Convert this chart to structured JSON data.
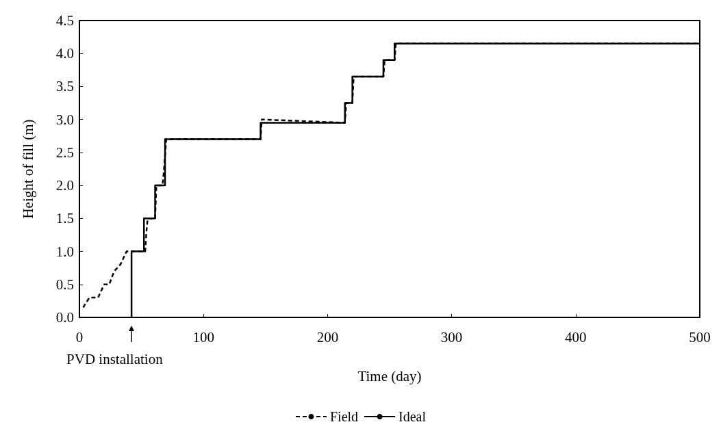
{
  "chart_data": {
    "type": "line",
    "xlabel": "Time (day)",
    "ylabel": "Height of fill (m)",
    "xlim": [
      0,
      500
    ],
    "xticks": [
      0,
      100,
      200,
      300,
      400,
      500
    ],
    "ylim": [
      0,
      4.5
    ],
    "yticks": [
      {
        "value": 0,
        "label": "0.0"
      },
      {
        "value": 0.5,
        "label": "0.5"
      },
      {
        "value": 1,
        "label": "1.0"
      },
      {
        "value": 1.5,
        "label": "1.5"
      },
      {
        "value": 2,
        "label": "2.0"
      },
      {
        "value": 2.5,
        "label": "2.5"
      },
      {
        "value": 3,
        "label": "3.0"
      },
      {
        "value": 3.5,
        "label": "3.5"
      },
      {
        "value": 4,
        "label": "4.0"
      },
      {
        "value": 4.5,
        "label": "4.5"
      }
    ],
    "grid": false,
    "legend": "bottom",
    "marker": "none",
    "series": [
      {
        "name": "Field",
        "line_style": "dashed",
        "color": "#000000",
        "x": [
          3,
          8,
          15,
          20,
          24,
          28,
          33,
          38,
          42,
          53,
          54,
          55,
          61,
          62,
          67,
          68,
          70,
          146,
          147,
          214,
          215,
          220,
          221,
          245,
          246,
          254,
          255,
          500
        ],
        "values": [
          0.15,
          0.3,
          0.3,
          0.5,
          0.5,
          0.7,
          0.8,
          1.0,
          1.0,
          1.0,
          1.3,
          1.5,
          1.5,
          2.0,
          2.0,
          2.2,
          2.7,
          2.7,
          3.0,
          2.95,
          3.25,
          3.25,
          3.65,
          3.65,
          3.9,
          3.9,
          4.15,
          4.15
        ]
      },
      {
        "name": "Ideal",
        "type": "step",
        "line_style": "solid",
        "color": "#000000",
        "x": [
          42,
          42,
          52,
          61,
          69,
          146,
          214,
          220,
          245,
          254,
          500
        ],
        "values": [
          0,
          1.0,
          1.5,
          2.0,
          2.7,
          2.95,
          3.25,
          3.65,
          3.9,
          4.15,
          4.15
        ]
      }
    ],
    "annotations": [
      {
        "text": "PVD installation",
        "x": 42,
        "y": 0
      }
    ]
  }
}
